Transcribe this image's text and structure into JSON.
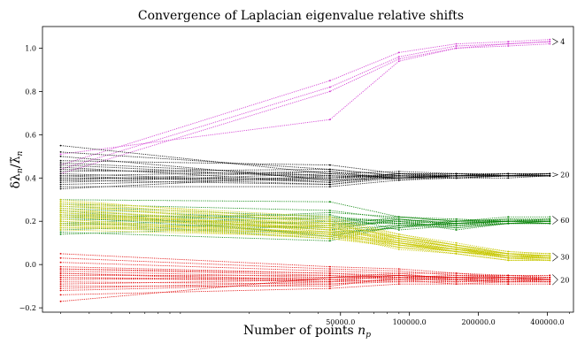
{
  "chart_data": {
    "type": "line",
    "title": "Convergence of Laplacian eigenvalue relative shifts",
    "xlabel": "Number of points n_p",
    "ylabel": "δλ_n / λ̃_n",
    "xscale": "log",
    "x": [
      3000,
      45000,
      90000,
      160000,
      270000,
      410000
    ],
    "x_tick_labels": [
      "50000.0",
      "100000.0",
      "200000.0",
      "400000.0"
    ],
    "x_ticks": [
      50000,
      100000,
      200000,
      400000
    ],
    "ylim": [
      -0.22,
      1.1
    ],
    "y_ticks": [
      -0.2,
      0.0,
      0.2,
      0.4,
      0.6,
      0.8,
      1.0
    ],
    "y_tick_labels": [
      "−0.2",
      "0.0",
      "0.2",
      "0.4",
      "0.6",
      "0.8",
      "1.0"
    ],
    "grid": false,
    "groups": [
      {
        "label": "4",
        "color": "#d030d0",
        "series": [
          [
            0.46,
            0.85,
            0.98,
            1.02,
            1.03,
            1.04
          ],
          [
            0.44,
            0.82,
            0.96,
            1.01,
            1.02,
            1.03
          ],
          [
            0.42,
            0.8,
            0.95,
            1.0,
            1.01,
            1.02
          ],
          [
            0.51,
            0.67,
            0.94,
            1.0,
            1.02,
            1.03
          ]
        ]
      },
      {
        "label": "20",
        "color": "#000000",
        "series": [
          [
            0.55,
            0.42,
            0.4,
            0.41,
            0.41,
            0.41
          ],
          [
            0.52,
            0.44,
            0.41,
            0.41,
            0.41,
            0.42
          ],
          [
            0.48,
            0.46,
            0.42,
            0.42,
            0.42,
            0.42
          ],
          [
            0.46,
            0.4,
            0.42,
            0.41,
            0.41,
            0.41
          ],
          [
            0.44,
            0.41,
            0.4,
            0.4,
            0.41,
            0.41
          ],
          [
            0.42,
            0.38,
            0.41,
            0.41,
            0.41,
            0.41
          ],
          [
            0.41,
            0.43,
            0.39,
            0.41,
            0.42,
            0.42
          ],
          [
            0.4,
            0.39,
            0.42,
            0.4,
            0.41,
            0.41
          ],
          [
            0.39,
            0.37,
            0.4,
            0.41,
            0.41,
            0.41
          ],
          [
            0.38,
            0.42,
            0.43,
            0.42,
            0.42,
            0.42
          ],
          [
            0.37,
            0.4,
            0.41,
            0.4,
            0.41,
            0.41
          ],
          [
            0.36,
            0.36,
            0.39,
            0.4,
            0.4,
            0.41
          ],
          [
            0.35,
            0.41,
            0.4,
            0.42,
            0.41,
            0.41
          ],
          [
            0.43,
            0.44,
            0.41,
            0.41,
            0.42,
            0.42
          ],
          [
            0.5,
            0.39,
            0.4,
            0.41,
            0.41,
            0.41
          ],
          [
            0.45,
            0.38,
            0.42,
            0.42,
            0.41,
            0.42
          ],
          [
            0.47,
            0.41,
            0.41,
            0.4,
            0.41,
            0.41
          ],
          [
            0.39,
            0.43,
            0.4,
            0.41,
            0.42,
            0.41
          ],
          [
            0.41,
            0.37,
            0.41,
            0.41,
            0.41,
            0.42
          ],
          [
            0.4,
            0.4,
            0.42,
            0.41,
            0.41,
            0.41
          ]
        ]
      },
      {
        "label": "60",
        "color": "#008000",
        "series": [
          [
            0.3,
            0.29,
            0.22,
            0.2,
            0.22,
            0.22
          ],
          [
            0.28,
            0.25,
            0.21,
            0.19,
            0.21,
            0.21
          ],
          [
            0.27,
            0.22,
            0.2,
            0.21,
            0.2,
            0.21
          ],
          [
            0.26,
            0.2,
            0.19,
            0.18,
            0.2,
            0.2
          ],
          [
            0.25,
            0.18,
            0.22,
            0.2,
            0.21,
            0.21
          ],
          [
            0.24,
            0.16,
            0.18,
            0.19,
            0.2,
            0.2
          ],
          [
            0.23,
            0.21,
            0.2,
            0.17,
            0.19,
            0.2
          ],
          [
            0.22,
            0.14,
            0.17,
            0.2,
            0.2,
            0.19
          ],
          [
            0.21,
            0.19,
            0.19,
            0.18,
            0.19,
            0.2
          ],
          [
            0.2,
            0.12,
            0.18,
            0.19,
            0.2,
            0.2
          ],
          [
            0.19,
            0.17,
            0.2,
            0.16,
            0.19,
            0.19
          ],
          [
            0.18,
            0.22,
            0.19,
            0.2,
            0.2,
            0.2
          ],
          [
            0.17,
            0.15,
            0.17,
            0.19,
            0.19,
            0.19
          ],
          [
            0.16,
            0.2,
            0.21,
            0.18,
            0.2,
            0.2
          ],
          [
            0.15,
            0.11,
            0.18,
            0.17,
            0.19,
            0.19
          ],
          [
            0.14,
            0.18,
            0.2,
            0.19,
            0.2,
            0.21
          ],
          [
            0.22,
            0.23,
            0.16,
            0.18,
            0.19,
            0.19
          ],
          [
            0.25,
            0.13,
            0.19,
            0.2,
            0.21,
            0.2
          ],
          [
            0.19,
            0.24,
            0.22,
            0.21,
            0.2,
            0.21
          ],
          [
            0.23,
            0.16,
            0.21,
            0.19,
            0.2,
            0.2
          ]
        ]
      },
      {
        "label": "30",
        "color": "#c8c800",
        "series": [
          [
            0.3,
            0.2,
            0.14,
            0.1,
            0.06,
            0.05
          ],
          [
            0.29,
            0.19,
            0.13,
            0.09,
            0.05,
            0.04
          ],
          [
            0.28,
            0.17,
            0.12,
            0.08,
            0.05,
            0.04
          ],
          [
            0.27,
            0.18,
            0.13,
            0.08,
            0.04,
            0.04
          ],
          [
            0.26,
            0.16,
            0.11,
            0.07,
            0.05,
            0.03
          ],
          [
            0.25,
            0.15,
            0.12,
            0.08,
            0.04,
            0.03
          ],
          [
            0.24,
            0.17,
            0.1,
            0.07,
            0.04,
            0.04
          ],
          [
            0.23,
            0.14,
            0.11,
            0.08,
            0.03,
            0.03
          ],
          [
            0.22,
            0.16,
            0.09,
            0.06,
            0.04,
            0.03
          ],
          [
            0.21,
            0.13,
            0.1,
            0.07,
            0.03,
            0.03
          ],
          [
            0.2,
            0.15,
            0.08,
            0.06,
            0.03,
            0.02
          ],
          [
            0.19,
            0.12,
            0.09,
            0.07,
            0.03,
            0.03
          ],
          [
            0.18,
            0.14,
            0.07,
            0.05,
            0.02,
            0.02
          ],
          [
            0.17,
            0.18,
            0.1,
            0.06,
            0.04,
            0.04
          ],
          [
            0.16,
            0.13,
            0.08,
            0.05,
            0.02,
            0.02
          ],
          [
            0.28,
            0.21,
            0.13,
            0.09,
            0.05,
            0.05
          ],
          [
            0.25,
            0.19,
            0.12,
            0.08,
            0.04,
            0.04
          ],
          [
            0.22,
            0.17,
            0.11,
            0.07,
            0.04,
            0.03
          ],
          [
            0.19,
            0.15,
            0.1,
            0.06,
            0.03,
            0.03
          ],
          [
            0.24,
            0.16,
            0.11,
            0.07,
            0.05,
            0.04
          ],
          [
            0.21,
            0.14,
            0.09,
            0.06,
            0.03,
            0.03
          ],
          [
            0.27,
            0.2,
            0.12,
            0.08,
            0.05,
            0.04
          ],
          [
            0.2,
            0.13,
            0.1,
            0.07,
            0.04,
            0.03
          ],
          [
            0.23,
            0.18,
            0.11,
            0.07,
            0.04,
            0.04
          ],
          [
            0.26,
            0.15,
            0.13,
            0.09,
            0.05,
            0.04
          ],
          [
            0.18,
            0.12,
            0.08,
            0.05,
            0.02,
            0.02
          ],
          [
            0.29,
            0.22,
            0.14,
            0.09,
            0.06,
            0.05
          ],
          [
            0.17,
            0.14,
            0.09,
            0.06,
            0.03,
            0.02
          ],
          [
            0.22,
            0.19,
            0.12,
            0.08,
            0.04,
            0.04
          ],
          [
            0.24,
            0.14,
            0.1,
            0.06,
            0.04,
            0.03
          ]
        ]
      },
      {
        "label": "20",
        "color": "#e00000",
        "series": [
          [
            0.05,
            -0.01,
            -0.02,
            -0.04,
            -0.05,
            -0.05
          ],
          [
            0.03,
            -0.02,
            -0.03,
            -0.05,
            -0.05,
            -0.05
          ],
          [
            0.01,
            -0.03,
            -0.04,
            -0.04,
            -0.06,
            -0.06
          ],
          [
            -0.01,
            -0.04,
            -0.05,
            -0.06,
            -0.05,
            -0.06
          ],
          [
            -0.02,
            -0.05,
            -0.06,
            -0.05,
            -0.06,
            -0.06
          ],
          [
            -0.03,
            -0.06,
            -0.04,
            -0.07,
            -0.06,
            -0.07
          ],
          [
            -0.04,
            -0.07,
            -0.06,
            -0.06,
            -0.07,
            -0.07
          ],
          [
            -0.05,
            -0.05,
            -0.07,
            -0.07,
            -0.06,
            -0.06
          ],
          [
            -0.06,
            -0.08,
            -0.05,
            -0.06,
            -0.07,
            -0.07
          ],
          [
            -0.07,
            -0.06,
            -0.06,
            -0.08,
            -0.07,
            -0.07
          ],
          [
            -0.08,
            -0.09,
            -0.07,
            -0.07,
            -0.08,
            -0.07
          ],
          [
            -0.09,
            -0.07,
            -0.08,
            -0.08,
            -0.07,
            -0.08
          ],
          [
            -0.1,
            -0.1,
            -0.06,
            -0.07,
            -0.08,
            -0.08
          ],
          [
            -0.11,
            -0.08,
            -0.07,
            -0.09,
            -0.08,
            -0.08
          ],
          [
            -0.12,
            -0.09,
            -0.08,
            -0.08,
            -0.08,
            -0.08
          ],
          [
            -0.14,
            -0.11,
            -0.09,
            -0.09,
            -0.09,
            -0.09
          ],
          [
            -0.17,
            -0.06,
            -0.05,
            -0.06,
            -0.06,
            -0.07
          ],
          [
            -0.02,
            -0.04,
            -0.06,
            -0.05,
            -0.05,
            -0.06
          ],
          [
            -0.06,
            -0.07,
            -0.05,
            -0.07,
            -0.07,
            -0.06
          ],
          [
            -0.04,
            -0.08,
            -0.07,
            -0.06,
            -0.06,
            -0.07
          ]
        ]
      }
    ]
  }
}
